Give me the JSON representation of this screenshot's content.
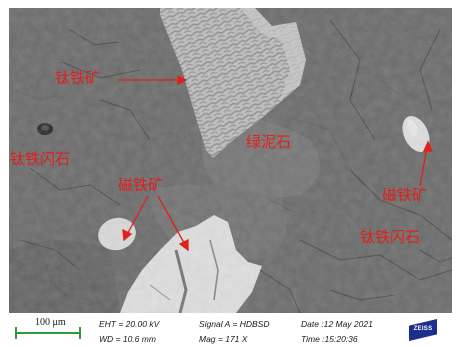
{
  "image": {
    "kind": "SEM backscattered electron micrograph",
    "colors": {
      "matrix": "#5e5e5e",
      "matrix_dark": "#4d4d4d",
      "chlorite": "#6e6e6e",
      "ilmenite": "#bdbdbd",
      "magnetite": "#ededed",
      "annotation": "#e0201c"
    }
  },
  "annotations": {
    "ilmenite": "钛铁矿",
    "titanohornblende_left": "钛铁闪石",
    "magnetite_center": "磁铁矿",
    "chlorite": "绿泥石",
    "magnetite_right": "磁铁矿",
    "titanohornblende_right": "钛铁闪石"
  },
  "info_bar": {
    "scale": "100 μm",
    "eht": "EHT = 20.00 kV",
    "wd": "WD = 10.6 mm",
    "signal": "Signal A = HDBSD",
    "mag": "Mag =    171 X",
    "date": "Date :12 May 2021",
    "time": "Time :15:20:36",
    "logo": "ZEISS"
  }
}
